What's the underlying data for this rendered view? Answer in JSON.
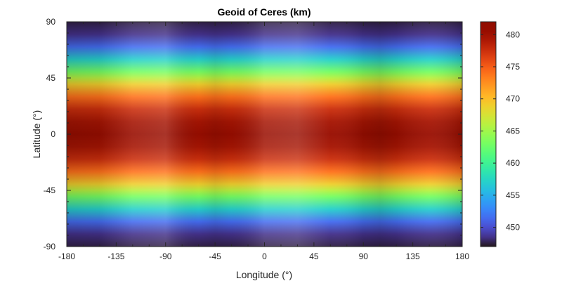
{
  "chart_data": {
    "type": "heatmap",
    "title": "Geoid of Ceres (km)",
    "xlabel": "Longitude (°)",
    "ylabel": "Latitude (°)",
    "xlim": [
      -180,
      180
    ],
    "ylim": [
      -90,
      90
    ],
    "xticks": [
      -180,
      -135,
      -90,
      -45,
      0,
      45,
      90,
      135,
      180
    ],
    "yticks": [
      -90,
      -45,
      0,
      45,
      90
    ],
    "colorbar": {
      "min": 447,
      "max": 482,
      "ticks": [
        450,
        455,
        460,
        465,
        470,
        475,
        480
      ],
      "colormap": "turbo"
    },
    "latitude_profile": {
      "lat": [
        -90,
        -80,
        -70,
        -60,
        -50,
        -45,
        -40,
        -30,
        -20,
        -10,
        0,
        10,
        20,
        30,
        40,
        45,
        50,
        60,
        70,
        80,
        90
      ],
      "value": [
        447.5,
        448.5,
        451.5,
        457,
        463,
        466,
        469,
        474,
        477.5,
        479.5,
        480.5,
        479.5,
        477.5,
        474,
        469,
        466,
        463,
        457,
        451.5,
        448.5,
        447.5
      ]
    },
    "longitude_variation": {
      "lon": [
        -180,
        -150,
        -120,
        -90,
        -60,
        -45,
        -30,
        0,
        30,
        60,
        90,
        105,
        120,
        150,
        180
      ],
      "delta": [
        0.8,
        0.6,
        -0.6,
        -0.9,
        0.2,
        0.6,
        0.3,
        -0.8,
        -1.0,
        -0.2,
        0.6,
        0.9,
        0.5,
        -0.3,
        0.8
      ]
    }
  }
}
